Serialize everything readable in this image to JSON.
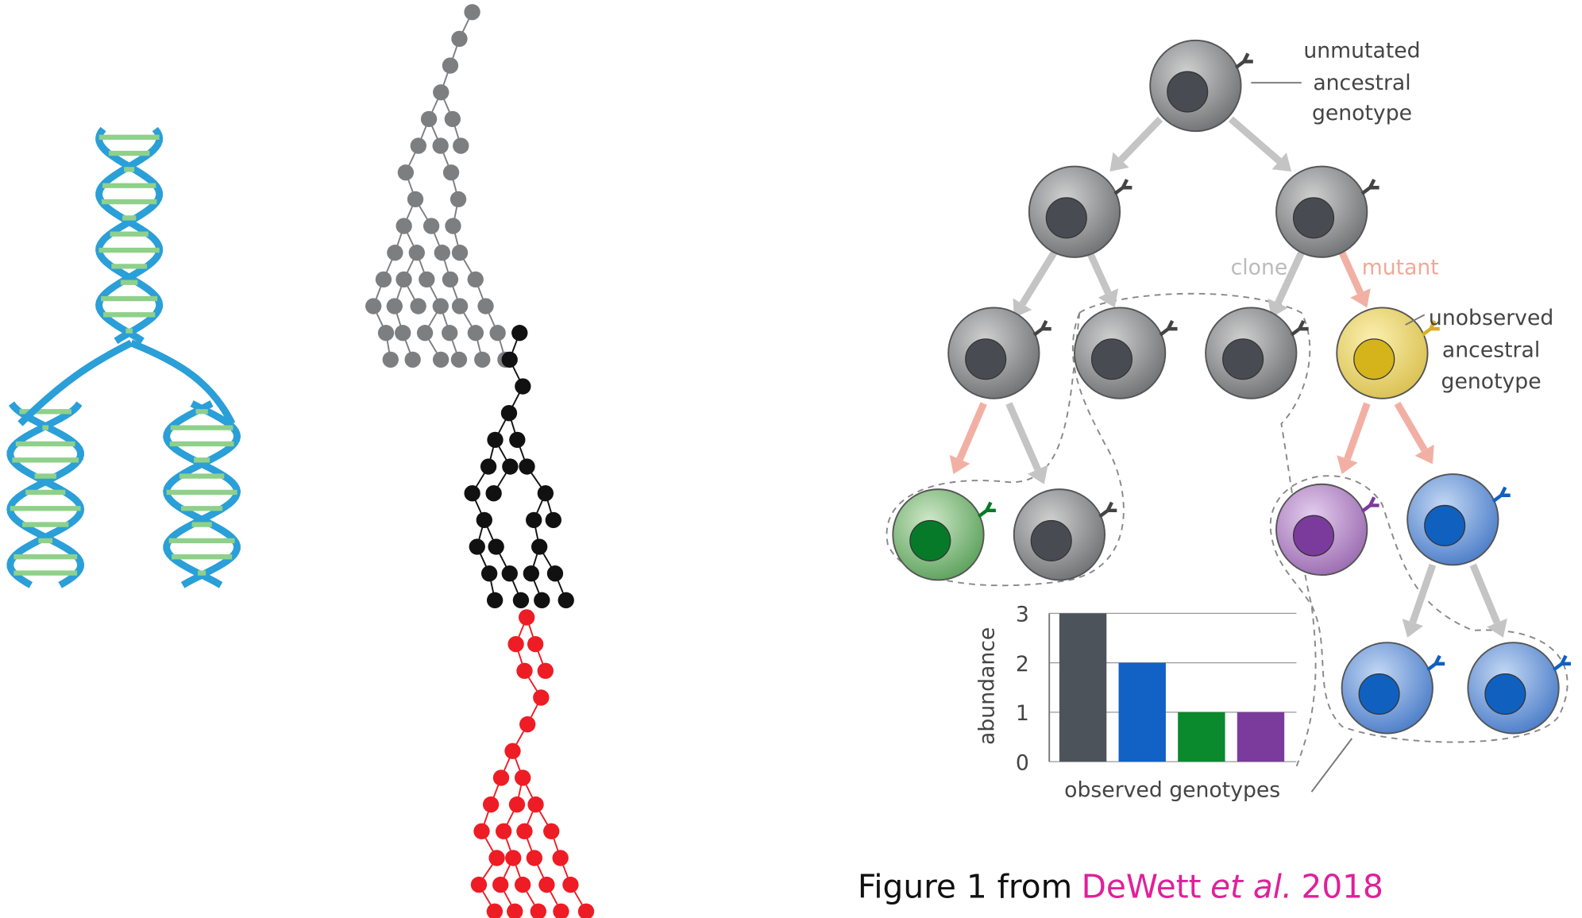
{
  "ancestral_label": [
    "unmutated",
    "ancestral",
    "genotype"
  ],
  "clone_label": "clone",
  "mutant_label": "mutant",
  "unobserved_label": [
    "unobserved",
    "ancestral",
    "genotype"
  ],
  "bar_chart": {
    "type": "bar",
    "ylabel": "abundance",
    "xlabel": "observed genotypes",
    "values": [
      3,
      2,
      1,
      1
    ],
    "colors": [
      "#4d535a",
      "#1162c4",
      "#0a8a2c",
      "#7b3b9c"
    ],
    "ylim": [
      0,
      3
    ],
    "yticks": [
      0,
      1,
      2,
      3
    ],
    "grid": true
  },
  "caption": {
    "prefix": "Figure 1 from",
    "author": "DeWett",
    "etal": "et al.",
    "year": "2018"
  }
}
